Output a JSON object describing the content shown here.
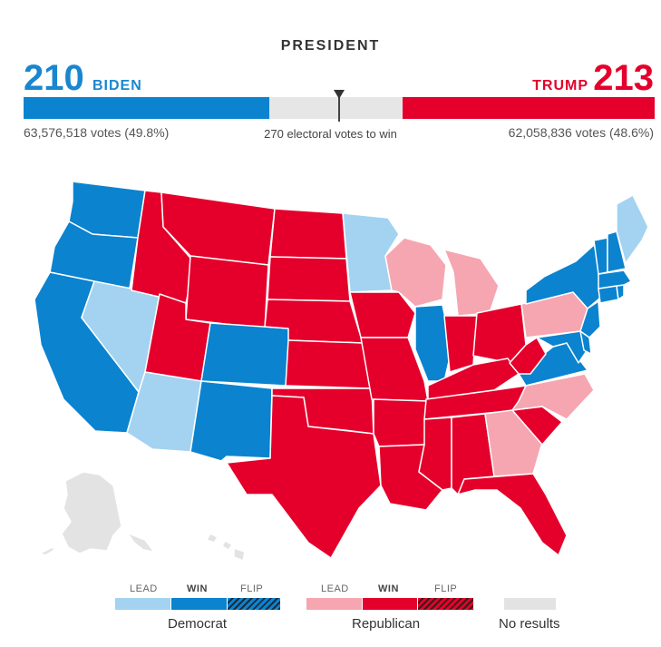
{
  "header": {
    "title": "PRESIDENT",
    "dem_electoral": "210",
    "dem_name": "BIDEN",
    "rep_electoral": "213",
    "rep_name": "TRUMP",
    "dem_votes": "63,576,518 votes (49.8%)",
    "rep_votes": "62,058,836 votes (48.6%)",
    "threshold": "270 electoral votes to win"
  },
  "colors": {
    "dem_win": "#0b83cf",
    "dem_lead": "#a3d3f0",
    "rep_win": "#e4002b",
    "rep_lead": "#f6a6b0",
    "no_result": "#e3e3e3"
  },
  "states": {
    "dem_win": [
      "WA",
      "OR",
      "CA",
      "CO",
      "NM",
      "IL",
      "VA",
      "NY",
      "NJ",
      "DE",
      "MD",
      "CT",
      "RI",
      "MA",
      "VT",
      "NH"
    ],
    "dem_lead": [
      "NV",
      "AZ",
      "MN",
      "ME"
    ],
    "rep_win": [
      "ID",
      "MT",
      "WY",
      "UT",
      "ND",
      "SD",
      "NE",
      "KS",
      "OK",
      "TX",
      "IA",
      "MO",
      "AR",
      "LA",
      "MS",
      "AL",
      "TN",
      "KY",
      "IN",
      "OH",
      "WV",
      "SC",
      "FL"
    ],
    "rep_lead": [
      "WI",
      "MI",
      "PA",
      "NC",
      "GA"
    ],
    "no_results": [
      "AK",
      "HI"
    ]
  },
  "legend": {
    "lead": "LEAD",
    "win": "WIN",
    "flip": "FLIP",
    "democrat": "Democrat",
    "republican": "Republican",
    "no_results": "No results"
  }
}
